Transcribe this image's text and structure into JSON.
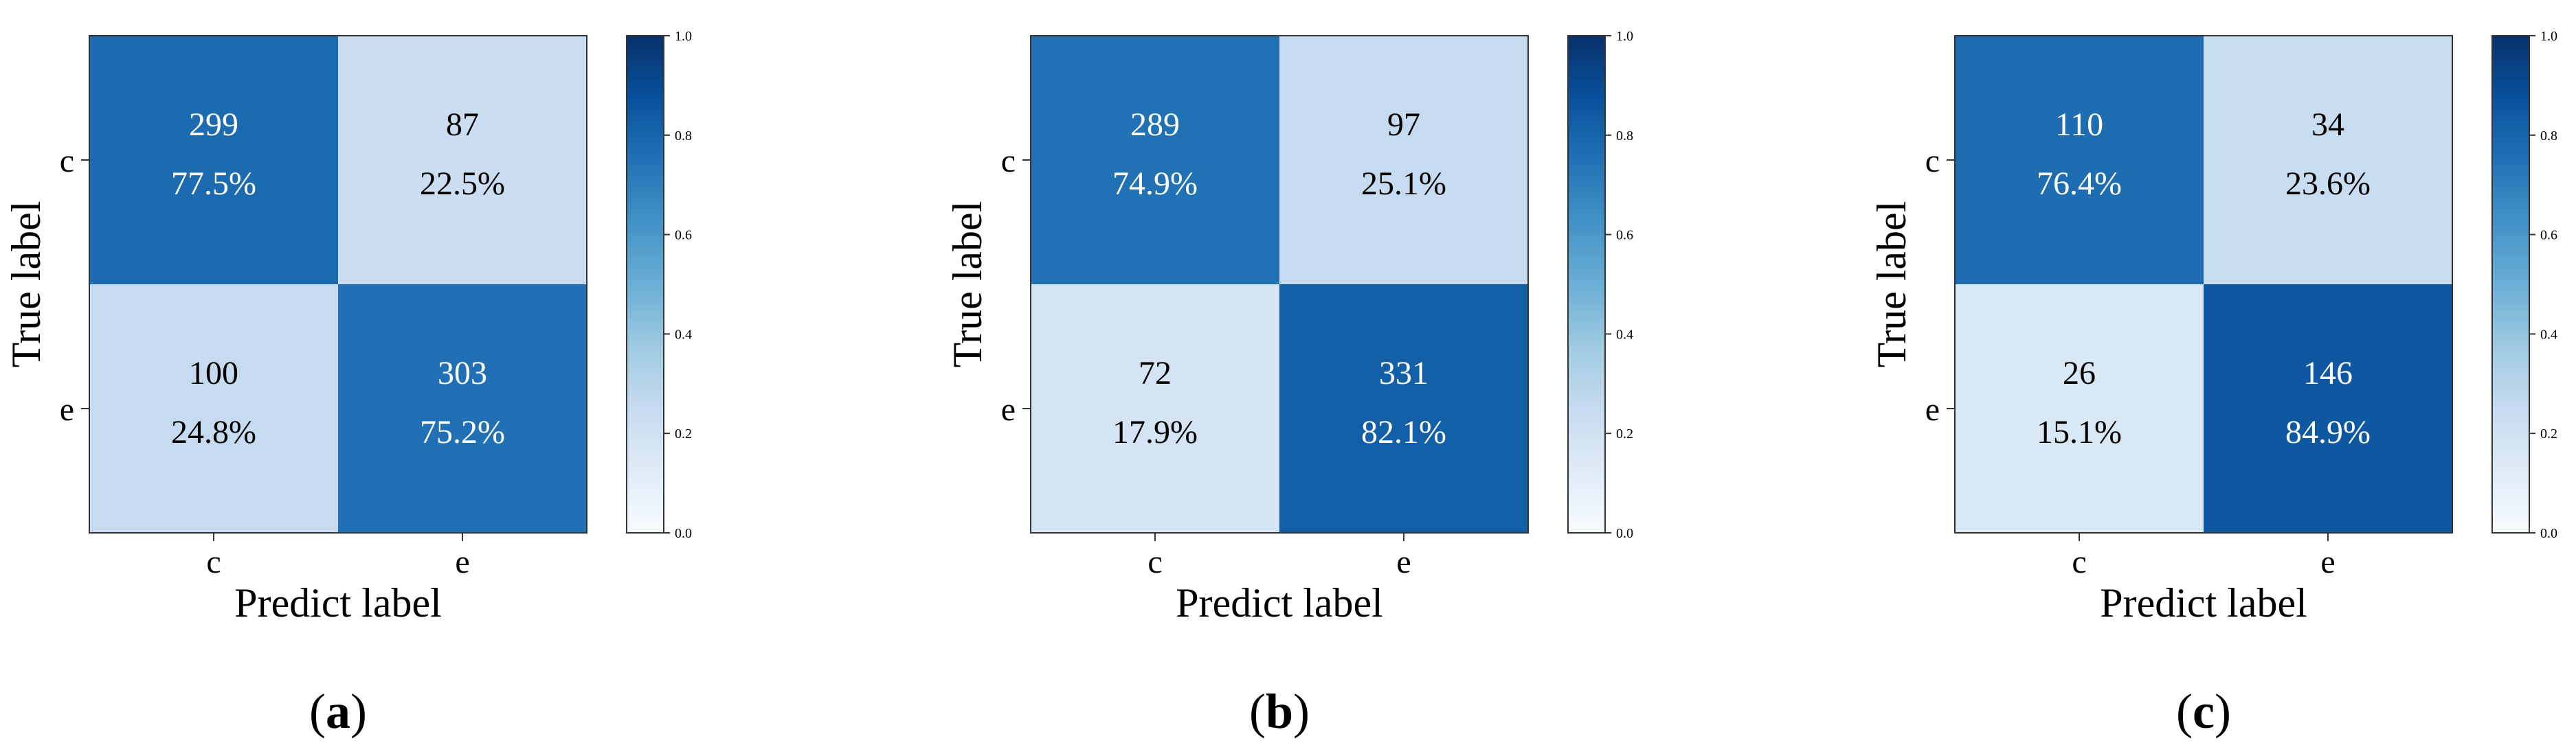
{
  "chart_data": [
    {
      "type": "heatmap",
      "panel_label": "a",
      "xlabel": "Predict label",
      "ylabel": "True label",
      "x_categories": [
        "c",
        "e"
      ],
      "y_categories": [
        "c",
        "e"
      ],
      "counts": [
        [
          299,
          87
        ],
        [
          100,
          303
        ]
      ],
      "percents": [
        "77.5%",
        "22.5%",
        "24.8%",
        "75.2%"
      ],
      "normalized": [
        [
          0.775,
          0.225
        ],
        [
          0.248,
          0.752
        ]
      ],
      "colorbar": {
        "range": [
          0.0,
          1.0
        ],
        "ticks": [
          "0.0",
          "0.2",
          "0.4",
          "0.6",
          "0.8",
          "1.0"
        ]
      }
    },
    {
      "type": "heatmap",
      "panel_label": "b",
      "xlabel": "Predict label",
      "ylabel": "True label",
      "x_categories": [
        "c",
        "e"
      ],
      "y_categories": [
        "c",
        "e"
      ],
      "counts": [
        [
          289,
          97
        ],
        [
          72,
          331
        ]
      ],
      "percents": [
        "74.9%",
        "25.1%",
        "17.9%",
        "82.1%"
      ],
      "normalized": [
        [
          0.749,
          0.251
        ],
        [
          0.179,
          0.821
        ]
      ],
      "colorbar": {
        "range": [
          0.0,
          1.0
        ],
        "ticks": [
          "0.0",
          "0.2",
          "0.4",
          "0.6",
          "0.8",
          "1.0"
        ]
      }
    },
    {
      "type": "heatmap",
      "panel_label": "c",
      "xlabel": "Predict label",
      "ylabel": "True label",
      "x_categories": [
        "c",
        "e"
      ],
      "y_categories": [
        "c",
        "e"
      ],
      "counts": [
        [
          110,
          34
        ],
        [
          26,
          146
        ]
      ],
      "percents": [
        "76.4%",
        "23.6%",
        "15.1%",
        "84.9%"
      ],
      "normalized": [
        [
          0.764,
          0.236
        ],
        [
          0.151,
          0.849
        ]
      ],
      "colorbar": {
        "range": [
          0.0,
          1.0
        ],
        "ticks": [
          "0.0",
          "0.2",
          "0.4",
          "0.6",
          "0.8",
          "1.0"
        ]
      }
    }
  ]
}
